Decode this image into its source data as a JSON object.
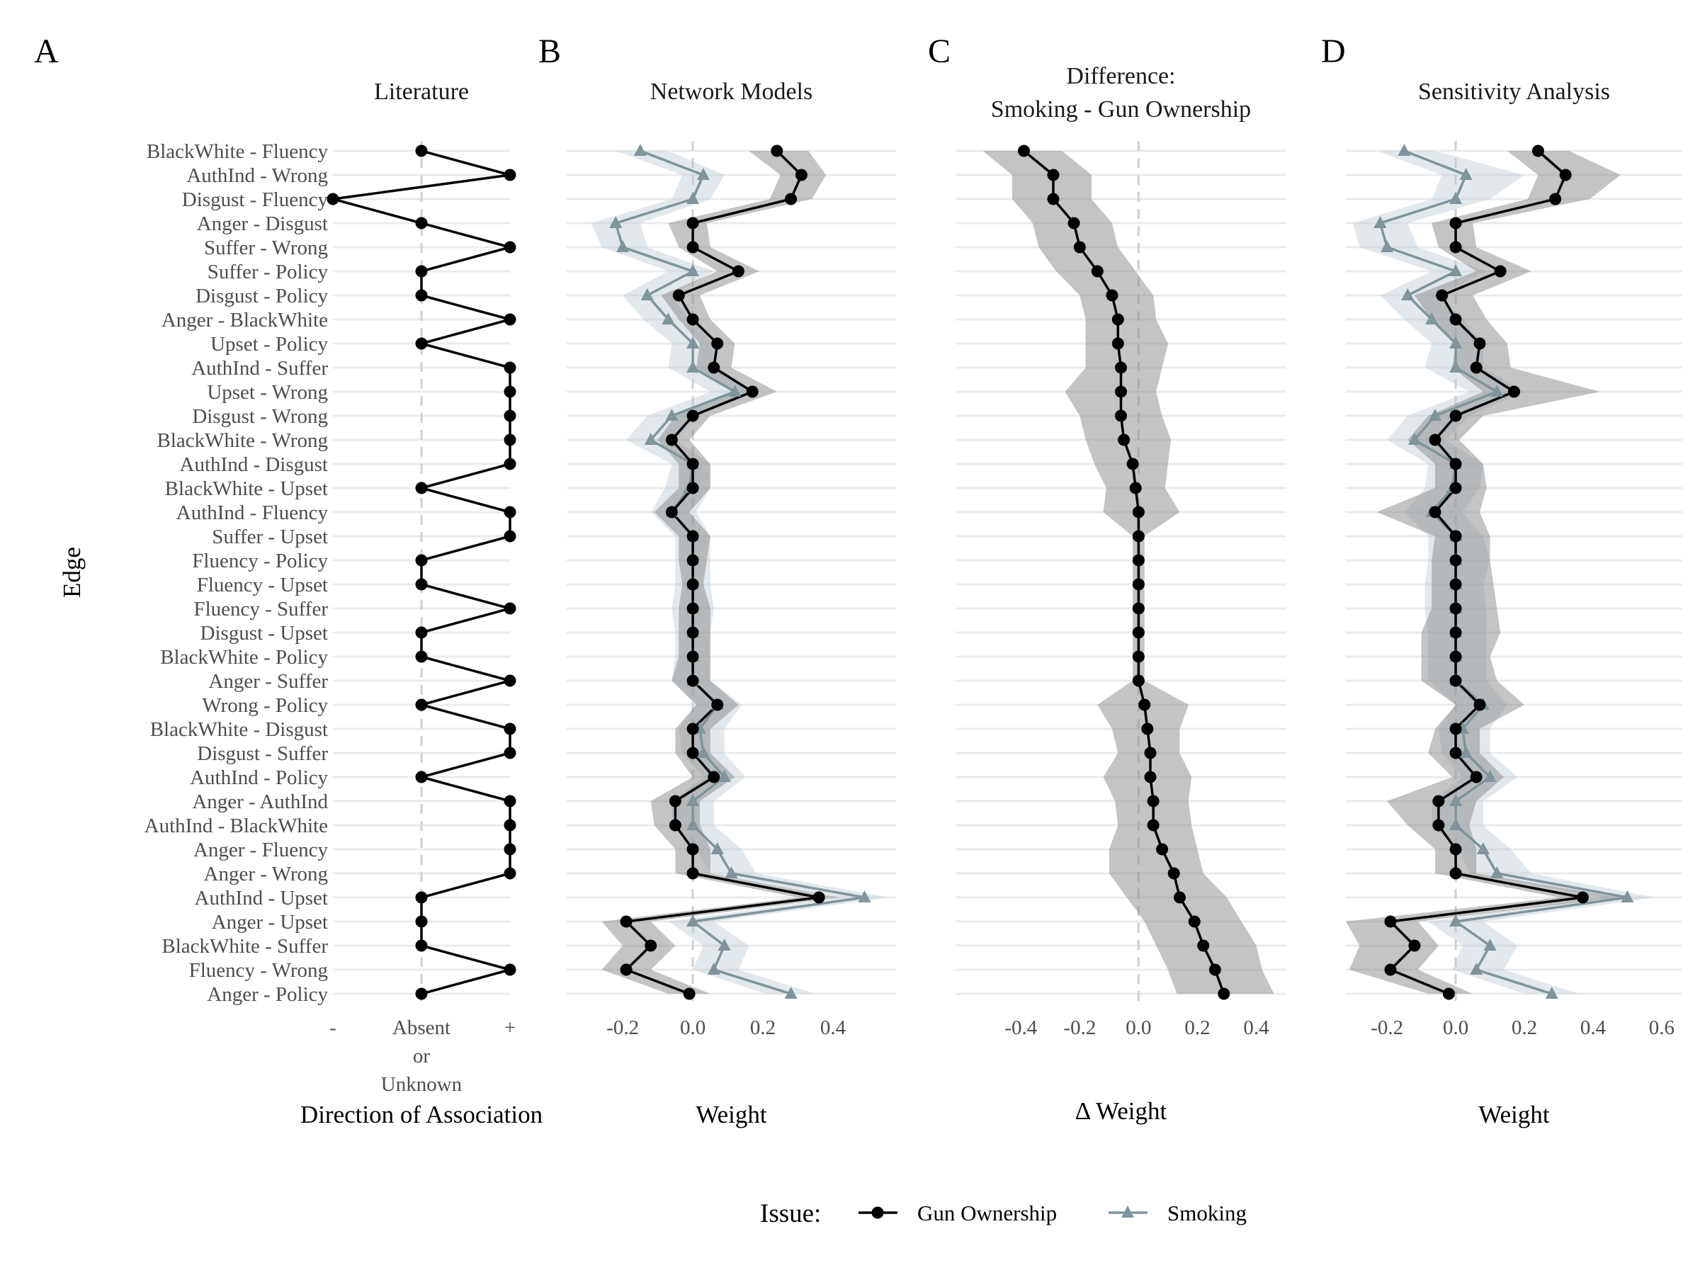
{
  "chart_data": {
    "type": "line",
    "y_axis_title": "Edge",
    "edges": [
      "BlackWhite - Fluency",
      "AuthInd - Wrong",
      "Disgust - Fluency",
      "Anger - Disgust",
      "Suffer - Wrong",
      "Suffer - Policy",
      "Disgust - Policy",
      "Anger - BlackWhite",
      "Upset - Policy",
      "AuthInd - Suffer",
      "Upset - Wrong",
      "Disgust - Wrong",
      "BlackWhite - Wrong",
      "AuthInd - Disgust",
      "BlackWhite - Upset",
      "AuthInd - Fluency",
      "Suffer - Upset",
      "Fluency - Policy",
      "Fluency - Upset",
      "Fluency - Suffer",
      "Disgust - Upset",
      "BlackWhite - Policy",
      "Anger - Suffer",
      "Wrong - Policy",
      "BlackWhite - Disgust",
      "Disgust - Suffer",
      "AuthInd - Policy",
      "Anger - AuthInd",
      "AuthInd - BlackWhite",
      "Anger - Fluency",
      "Anger - Wrong",
      "AuthInd - Upset",
      "Anger - Upset",
      "BlackWhite - Suffer",
      "Fluency - Wrong",
      "Anger - Policy"
    ],
    "legend": {
      "title": "Issue:",
      "placement": "bottom",
      "items": [
        {
          "name": "Gun Ownership",
          "color": "#000000",
          "marker": "circle"
        },
        {
          "name": "Smoking",
          "color": "#7f949b",
          "marker": "triangle"
        }
      ]
    },
    "panels": [
      {
        "letter": "A",
        "title": "Literature",
        "xlabel": "Direction of Association",
        "xlim": [
          -1,
          1
        ],
        "ticks": [
          {
            "value": -1,
            "label": "-"
          },
          {
            "value": 0,
            "label": "Absent\nor\nUnknown"
          },
          {
            "value": 1,
            "label": "+"
          }
        ],
        "series": [
          {
            "issue": "Gun Ownership",
            "values": [
              0,
              1,
              -1,
              0,
              1,
              0,
              0,
              1,
              0,
              1,
              1,
              1,
              1,
              1,
              0,
              1,
              1,
              0,
              0,
              1,
              0,
              0,
              1,
              0,
              1,
              1,
              0,
              1,
              1,
              1,
              1,
              0,
              0,
              0,
              1,
              0
            ]
          }
        ]
      },
      {
        "letter": "B",
        "title": "Network Models",
        "xlabel": "Weight",
        "xlim": [
          -0.36,
          0.58
        ],
        "ticks": [
          {
            "value": -0.2,
            "label": "-0.2"
          },
          {
            "value": 0,
            "label": "0.0"
          },
          {
            "value": 0.2,
            "label": "0.2"
          },
          {
            "value": 0.4,
            "label": "0.4"
          }
        ],
        "series": [
          {
            "issue": "Gun Ownership",
            "values": [
              0.24,
              0.31,
              0.28,
              0,
              0,
              0.13,
              -0.04,
              0,
              0.07,
              0.06,
              0.17,
              0,
              -0.06,
              0,
              0,
              -0.06,
              0,
              0,
              0,
              0,
              0,
              0,
              0,
              0.07,
              0,
              0,
              0.06,
              -0.05,
              -0.05,
              0,
              0,
              0.36,
              -0.19,
              -0.12,
              -0.19,
              -0.01
            ],
            "lower": [
              0.16,
              0.25,
              0.22,
              -0.07,
              -0.04,
              0.07,
              -0.09,
              -0.04,
              0.02,
              0.01,
              0.11,
              -0.05,
              -0.1,
              -0.04,
              -0.04,
              -0.11,
              -0.04,
              -0.04,
              -0.03,
              -0.04,
              -0.04,
              -0.04,
              -0.06,
              0.01,
              -0.05,
              -0.05,
              0,
              -0.12,
              -0.11,
              -0.05,
              -0.05,
              0.3,
              -0.26,
              -0.2,
              -0.26,
              -0.07
            ],
            "upper": [
              0.33,
              0.38,
              0.34,
              0.04,
              0.05,
              0.19,
              0.02,
              0.05,
              0.12,
              0.11,
              0.24,
              0.05,
              -0.01,
              0.05,
              0.05,
              -0.01,
              0.05,
              0.04,
              0.03,
              0.05,
              0.05,
              0.05,
              0.05,
              0.13,
              0.05,
              0.05,
              0.12,
              0.02,
              0.02,
              0.05,
              0.05,
              0.42,
              -0.12,
              -0.05,
              -0.12,
              0.05
            ]
          },
          {
            "issue": "Smoking",
            "values": [
              -0.15,
              0.03,
              0,
              -0.22,
              -0.2,
              0,
              -0.13,
              -0.07,
              0,
              0,
              0.12,
              -0.06,
              -0.12,
              0,
              -0.01,
              -0.06,
              0,
              0,
              0,
              0,
              0,
              0,
              0,
              0.07,
              0.02,
              0.03,
              0.09,
              0,
              0,
              0.07,
              0.11,
              0.49,
              0,
              0.09,
              0.06,
              0.28
            ],
            "lower": [
              -0.22,
              -0.03,
              -0.06,
              -0.29,
              -0.26,
              -0.07,
              -0.2,
              -0.14,
              -0.06,
              -0.07,
              0.05,
              -0.13,
              -0.19,
              -0.06,
              -0.08,
              -0.12,
              -0.05,
              -0.05,
              -0.05,
              -0.06,
              -0.05,
              -0.05,
              -0.06,
              0.01,
              -0.04,
              -0.03,
              0.03,
              -0.06,
              -0.06,
              0.01,
              0.05,
              0.42,
              -0.07,
              0.03,
              0,
              0.21
            ],
            "upper": [
              -0.07,
              0.09,
              0.05,
              -0.15,
              -0.13,
              0.06,
              -0.06,
              -0.01,
              0.06,
              0.06,
              0.18,
              0.01,
              -0.05,
              0.05,
              0.05,
              0.01,
              0.05,
              0.05,
              0.05,
              0.06,
              0.05,
              0.05,
              0.05,
              0.14,
              0.09,
              0.09,
              0.15,
              0.06,
              0.06,
              0.14,
              0.18,
              0.56,
              0.06,
              0.16,
              0.13,
              0.35
            ]
          }
        ]
      },
      {
        "letter": "C",
        "title": "Difference:\nSmoking - Gun Ownership",
        "xlabel": "Δ Weight",
        "xlim": [
          -0.62,
          0.5
        ],
        "ticks": [
          {
            "value": -0.4,
            "label": "-0.4"
          },
          {
            "value": -0.2,
            "label": "-0.2"
          },
          {
            "value": 0,
            "label": "0.0"
          },
          {
            "value": 0.2,
            "label": "0.2"
          },
          {
            "value": 0.4,
            "label": "0.4"
          }
        ],
        "series": [
          {
            "issue": "Gun Ownership",
            "values": [
              -0.39,
              -0.29,
              -0.29,
              -0.22,
              -0.2,
              -0.14,
              -0.09,
              -0.07,
              -0.07,
              -0.06,
              -0.06,
              -0.06,
              -0.05,
              -0.02,
              -0.01,
              0,
              0,
              0,
              0,
              0,
              0,
              0,
              0,
              0.02,
              0.03,
              0.04,
              0.04,
              0.05,
              0.05,
              0.08,
              0.12,
              0.14,
              0.19,
              0.22,
              0.26,
              0.29
            ],
            "lower": [
              -0.53,
              -0.43,
              -0.43,
              -0.36,
              -0.34,
              -0.28,
              -0.2,
              -0.18,
              -0.18,
              -0.18,
              -0.25,
              -0.2,
              -0.18,
              -0.15,
              -0.11,
              -0.12,
              -0.02,
              -0.02,
              -0.02,
              -0.02,
              -0.02,
              -0.02,
              -0.02,
              -0.14,
              -0.09,
              -0.07,
              -0.12,
              -0.08,
              -0.07,
              -0.1,
              -0.1,
              -0.04,
              0.02,
              0.06,
              0.1,
              0.13
            ],
            "upper": [
              -0.26,
              -0.16,
              -0.16,
              -0.09,
              -0.07,
              -0.01,
              0.05,
              0.06,
              0.1,
              0.08,
              0.06,
              0.08,
              0.11,
              0.1,
              0.09,
              0.14,
              0.02,
              0.02,
              0.02,
              0.02,
              0.02,
              0.02,
              0.02,
              0.17,
              0.14,
              0.14,
              0.18,
              0.17,
              0.18,
              0.2,
              0.22,
              0.3,
              0.35,
              0.4,
              0.42,
              0.46
            ]
          }
        ]
      },
      {
        "letter": "D",
        "title": "Sensitivity Analysis",
        "xlabel": "Weight",
        "xlim": [
          -0.32,
          0.66
        ],
        "ticks": [
          {
            "value": -0.2,
            "label": "-0.2"
          },
          {
            "value": 0,
            "label": "0.0"
          },
          {
            "value": 0.2,
            "label": "0.2"
          },
          {
            "value": 0.4,
            "label": "0.4"
          },
          {
            "value": 0.6,
            "label": "0.6"
          }
        ],
        "series": [
          {
            "issue": "Gun Ownership",
            "values": [
              0.24,
              0.32,
              0.29,
              0,
              0,
              0.13,
              -0.04,
              0,
              0.07,
              0.06,
              0.17,
              0,
              -0.06,
              0,
              0,
              -0.06,
              0,
              0,
              0,
              0,
              0,
              0,
              0,
              0.07,
              0,
              0,
              0.06,
              -0.05,
              -0.05,
              0,
              0,
              0.37,
              -0.19,
              -0.12,
              -0.19,
              -0.02
            ],
            "lower": [
              0.15,
              0.24,
              0.21,
              -0.07,
              -0.05,
              0.06,
              -0.12,
              -0.07,
              0,
              -0.01,
              0.08,
              -0.08,
              -0.14,
              -0.06,
              -0.06,
              -0.23,
              -0.06,
              -0.07,
              -0.07,
              -0.07,
              -0.1,
              -0.1,
              -0.1,
              0,
              -0.06,
              -0.08,
              -0.01,
              -0.2,
              -0.14,
              -0.06,
              -0.06,
              0.3,
              -0.32,
              -0.28,
              -0.31,
              -0.08
            ],
            "upper": [
              0.33,
              0.48,
              0.39,
              0.05,
              0.06,
              0.22,
              0.05,
              0.09,
              0.15,
              0.16,
              0.42,
              0.08,
              0.01,
              0.08,
              0.09,
              0.07,
              0.1,
              0.1,
              0.11,
              0.12,
              0.13,
              0.1,
              0.12,
              0.2,
              0.07,
              0.07,
              0.14,
              0.06,
              0.04,
              0.06,
              0.06,
              0.48,
              -0.11,
              -0.05,
              -0.11,
              0.05
            ]
          },
          {
            "issue": "Smoking",
            "values": [
              -0.15,
              0.03,
              0,
              -0.22,
              -0.2,
              0,
              -0.14,
              -0.07,
              0,
              0,
              0.12,
              -0.06,
              -0.12,
              0,
              -0.01,
              -0.07,
              0,
              0,
              0,
              0,
              0,
              0,
              0,
              0.08,
              0.02,
              0.03,
              0.1,
              0,
              0,
              0.08,
              0.12,
              0.5,
              0,
              0.1,
              0.06,
              0.28
            ],
            "lower": [
              -0.23,
              -0.04,
              -0.07,
              -0.3,
              -0.28,
              -0.07,
              -0.22,
              -0.15,
              -0.07,
              -0.09,
              0.04,
              -0.14,
              -0.2,
              -0.08,
              -0.09,
              -0.15,
              -0.08,
              -0.08,
              -0.09,
              -0.09,
              -0.08,
              -0.08,
              -0.08,
              0,
              -0.05,
              -0.04,
              0.02,
              -0.07,
              -0.07,
              0.01,
              0.04,
              0.43,
              -0.08,
              0.02,
              -0.01,
              0.2
            ],
            "upper": [
              -0.06,
              0.2,
              0.1,
              -0.14,
              -0.11,
              0.09,
              -0.05,
              0.02,
              0.08,
              0.08,
              0.2,
              0.04,
              -0.03,
              0.08,
              0.07,
              0.02,
              0.08,
              0.1,
              0.08,
              0.09,
              0.09,
              0.09,
              0.09,
              0.15,
              0.1,
              0.1,
              0.18,
              0.08,
              0.08,
              0.16,
              0.22,
              0.58,
              0.08,
              0.18,
              0.14,
              0.36
            ]
          }
        ]
      }
    ]
  }
}
